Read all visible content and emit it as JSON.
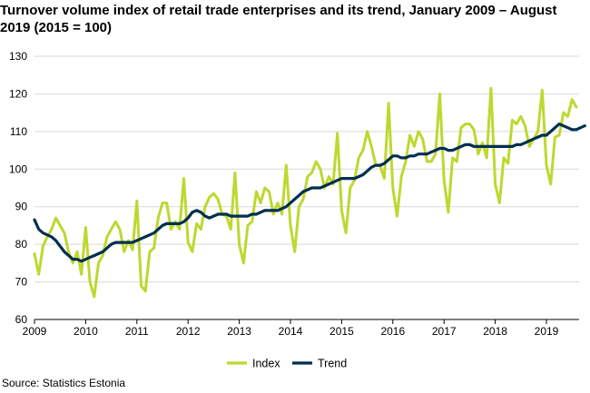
{
  "title": "Turnover volume index of retail trade enterprises and its trend, January 2009 – August 2019 (2015 = 100)",
  "source": "Source: Statistics Estonia",
  "chart_data": {
    "type": "line",
    "title": "Turnover volume index of retail trade enterprises and its trend, January 2009 – August 2019 (2015 = 100)",
    "xlabel": "",
    "ylabel": "",
    "ylim": [
      60,
      130
    ],
    "yticks": [
      60,
      70,
      80,
      90,
      100,
      110,
      120,
      130
    ],
    "xticks": [
      "2009",
      "2010",
      "2011",
      "2012",
      "2013",
      "2014",
      "2015",
      "2016",
      "2017",
      "2018",
      "2019"
    ],
    "grid": "horizontal",
    "legend": "bottom",
    "colors": {
      "Index": "#bfd730",
      "Trend": "#002f4f"
    },
    "series": [
      {
        "name": "Index",
        "values": [
          77.5,
          72,
          79.5,
          82,
          84,
          87,
          85,
          83,
          78,
          75,
          78,
          72,
          84.5,
          70,
          66,
          75,
          77,
          82,
          84,
          86,
          84,
          78,
          81,
          78.5,
          91.5,
          69,
          67.5,
          78,
          79,
          87,
          91,
          91,
          84,
          86,
          84,
          97.5,
          80.5,
          78,
          85.5,
          84,
          90,
          92.5,
          93.5,
          92,
          88,
          87.5,
          84,
          99,
          80,
          75,
          85,
          86,
          94,
          91,
          95,
          94,
          88,
          91,
          88,
          101,
          85,
          78,
          90,
          92,
          98,
          99,
          102,
          100,
          95,
          98,
          96,
          109.5,
          89,
          83,
          95,
          97,
          103,
          105,
          110,
          106,
          101,
          101,
          97.5,
          117.5,
          95,
          87.5,
          98,
          102,
          109,
          106,
          110,
          108,
          102,
          102,
          104,
          120,
          97,
          88.5,
          103,
          102,
          111,
          112,
          112,
          110.5,
          104,
          107,
          103,
          121.5,
          96,
          91,
          103,
          101.5,
          113,
          112,
          114,
          111.5,
          106,
          108,
          110,
          121,
          101,
          96,
          108.5,
          109,
          115,
          114,
          118.5,
          116.5
        ]
      },
      {
        "name": "Trend",
        "values": [
          86.5,
          84,
          83,
          82.5,
          82,
          81,
          79.5,
          78,
          77,
          76,
          76,
          75.5,
          76,
          76.5,
          77,
          77.5,
          78,
          79,
          80,
          80.5,
          80.5,
          80.5,
          80.5,
          80.5,
          81,
          81.5,
          82,
          82.5,
          83,
          84,
          85,
          85.5,
          85.5,
          85.5,
          85.5,
          86,
          87,
          88.5,
          89,
          88.5,
          87.5,
          87,
          87.5,
          88,
          88,
          88,
          87.5,
          87.5,
          87.5,
          87.5,
          87.5,
          88,
          88,
          88.5,
          89,
          89,
          89,
          89,
          89.5,
          90,
          91,
          92,
          93,
          94,
          94.5,
          95,
          95,
          95,
          95.5,
          96,
          96.5,
          97,
          97.5,
          97.5,
          97.5,
          97.5,
          98,
          98.5,
          99.5,
          100.5,
          101,
          101,
          101.5,
          102.5,
          103.5,
          103.5,
          103,
          103,
          103.5,
          103.5,
          104,
          104,
          104,
          104.5,
          105,
          105.5,
          105.5,
          105,
          105,
          105.5,
          106,
          106.5,
          106.5,
          106,
          106,
          106,
          106,
          106,
          106,
          106,
          106,
          106,
          106,
          106.5,
          106.5,
          107,
          107.5,
          108,
          108.5,
          109,
          109,
          110,
          111,
          112,
          111.5,
          111,
          110.5,
          110.5,
          111,
          111.5
        ]
      }
    ]
  }
}
